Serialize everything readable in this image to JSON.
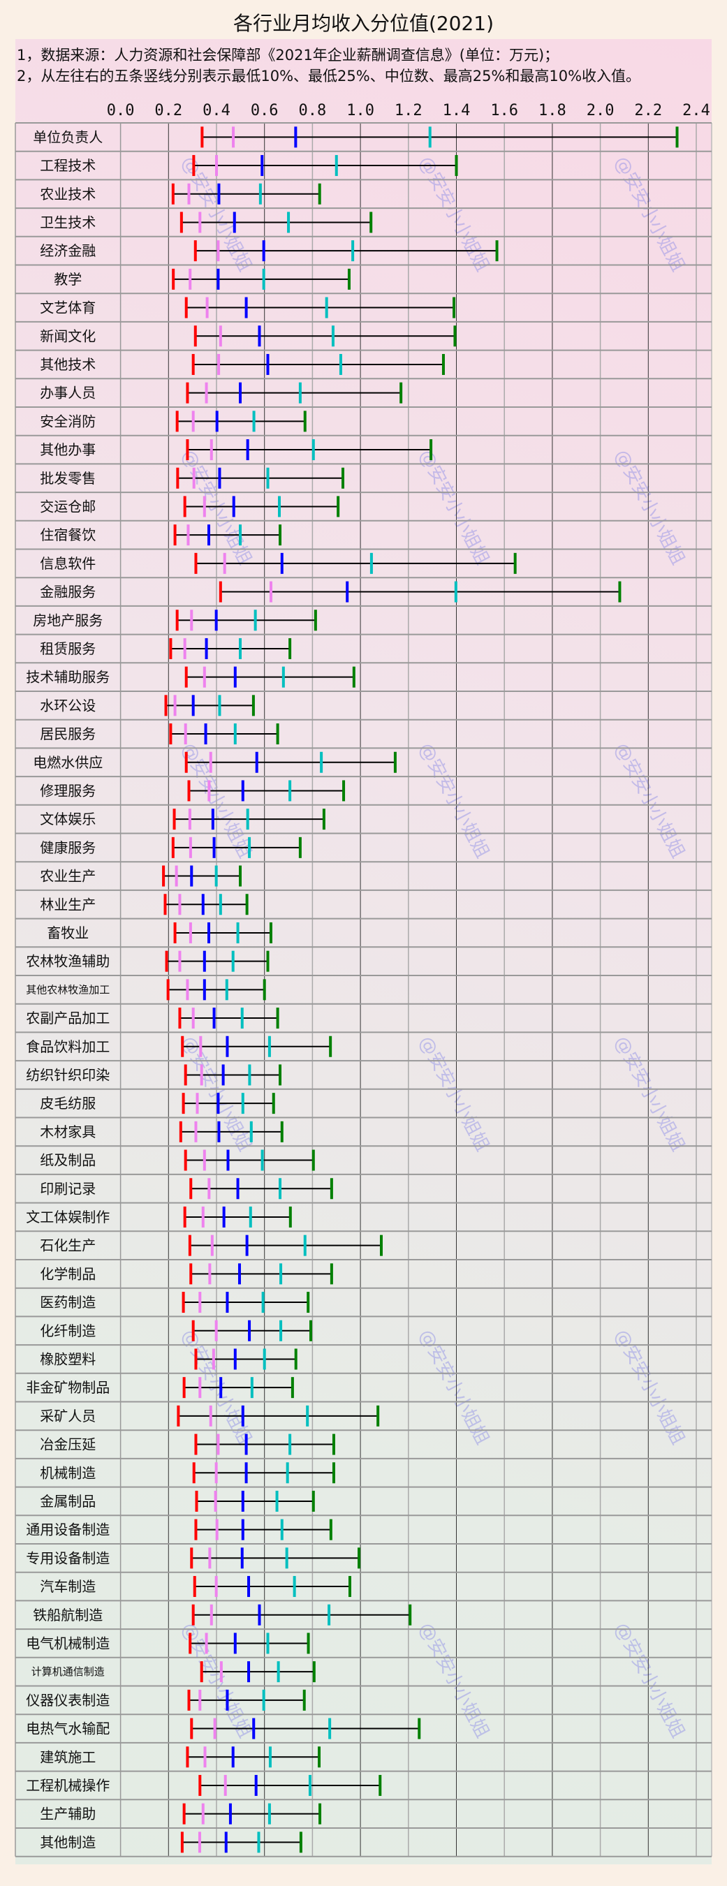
{
  "title": "各行业月均收入分位值(2021)",
  "notes": [
    "1，数据来源：人力资源和社会保障部《2021年企业薪酬调查信息》(单位：万元)；",
    "2，从左往右的五条竖线分别表示最低10%、最低25%、中位数、最高25%和最高10%收入值。"
  ],
  "watermark": "@安安小小姐姐",
  "chart_data": {
    "type": "range-marker",
    "unit": "万元",
    "xlim": [
      0.0,
      2.4
    ],
    "x_ticks": [
      "0.0",
      "0.2",
      "0.4",
      "0.6",
      "0.8",
      "1.0",
      "1.2",
      "1.4",
      "1.6",
      "1.8",
      "2.0",
      "2.2",
      "2.4"
    ],
    "grid": true,
    "series_names": [
      "最低10%",
      "最低25%",
      "中位数",
      "最高25%",
      "最高10%"
    ],
    "series_colors": [
      "#ff0000",
      "#ee82ee",
      "#0000ff",
      "#00bfbf",
      "#008000"
    ],
    "rows": [
      [
        "单位负责人",
        0.34,
        0.47,
        0.73,
        1.29,
        2.32
      ],
      [
        "工程技术",
        0.305,
        0.4,
        0.59,
        0.9,
        1.4
      ],
      [
        "农业技术",
        0.219,
        0.285,
        0.41,
        0.583,
        0.83
      ],
      [
        "卫生技术",
        0.254,
        0.331,
        0.475,
        0.7,
        1.044
      ],
      [
        "经济金融",
        0.312,
        0.407,
        0.597,
        0.968,
        1.569
      ],
      [
        "教学",
        0.22,
        0.29,
        0.407,
        0.597,
        0.953
      ],
      [
        "文艺体育",
        0.274,
        0.361,
        0.524,
        0.859,
        1.39
      ],
      [
        "新闻文化",
        0.312,
        0.417,
        0.579,
        0.886,
        1.394
      ],
      [
        "其他技术",
        0.303,
        0.409,
        0.614,
        0.918,
        1.346
      ],
      [
        "办事人员",
        0.279,
        0.358,
        0.499,
        0.749,
        1.169
      ],
      [
        "安全消防",
        0.236,
        0.303,
        0.402,
        0.556,
        0.769
      ],
      [
        "其他办事",
        0.279,
        0.379,
        0.53,
        0.804,
        1.294
      ],
      [
        "批发零售",
        0.238,
        0.306,
        0.413,
        0.614,
        0.927
      ],
      [
        "交运仓邮",
        0.268,
        0.35,
        0.472,
        0.662,
        0.907
      ],
      [
        "住宿餐饮",
        0.227,
        0.282,
        0.368,
        0.499,
        0.665
      ],
      [
        "信息软件",
        0.314,
        0.434,
        0.673,
        1.046,
        1.645
      ],
      [
        "金融服务",
        0.417,
        0.627,
        0.945,
        1.398,
        2.081
      ],
      [
        "房地产服务",
        0.236,
        0.296,
        0.399,
        0.562,
        0.813
      ],
      [
        "租赁服务",
        0.209,
        0.268,
        0.358,
        0.499,
        0.706
      ],
      [
        "技术辅助服务",
        0.274,
        0.35,
        0.478,
        0.679,
        0.973
      ],
      [
        "水环公设",
        0.189,
        0.227,
        0.303,
        0.413,
        0.554
      ],
      [
        "居民服务",
        0.209,
        0.271,
        0.355,
        0.478,
        0.655
      ],
      [
        "电燃水供应",
        0.274,
        0.376,
        0.568,
        0.837,
        1.145
      ],
      [
        "修理服务",
        0.285,
        0.369,
        0.51,
        0.706,
        0.93
      ],
      [
        "文体娱乐",
        0.224,
        0.289,
        0.385,
        0.53,
        0.848
      ],
      [
        "健康服务",
        0.219,
        0.292,
        0.39,
        0.537,
        0.749
      ],
      [
        "农业生产",
        0.179,
        0.233,
        0.296,
        0.399,
        0.499
      ],
      [
        "林业生产",
        0.186,
        0.247,
        0.344,
        0.417,
        0.527
      ],
      [
        "畜牧业",
        0.227,
        0.292,
        0.368,
        0.489,
        0.627
      ],
      [
        "农林牧渔辅助",
        0.192,
        0.247,
        0.35,
        0.469,
        0.614
      ],
      [
        "其他农林牧渔加工",
        0.198,
        0.279,
        0.35,
        0.443,
        0.6
      ],
      [
        "农副产品加工",
        0.247,
        0.303,
        0.39,
        0.507,
        0.655
      ],
      [
        "食品饮料加工",
        0.258,
        0.334,
        0.445,
        0.621,
        0.875
      ],
      [
        "纺织针织印染",
        0.271,
        0.338,
        0.428,
        0.538,
        0.665
      ],
      [
        "皮毛纺服",
        0.262,
        0.32,
        0.407,
        0.51,
        0.638
      ],
      [
        "木材家具",
        0.251,
        0.314,
        0.41,
        0.545,
        0.673
      ],
      [
        "纸及制品",
        0.271,
        0.35,
        0.448,
        0.591,
        0.804
      ],
      [
        "印刷记录",
        0.293,
        0.369,
        0.489,
        0.665,
        0.88
      ],
      [
        "文工体娱制作",
        0.268,
        0.344,
        0.431,
        0.542,
        0.708
      ],
      [
        "石化生产",
        0.289,
        0.382,
        0.527,
        0.769,
        1.087
      ],
      [
        "化学制品",
        0.293,
        0.372,
        0.496,
        0.668,
        0.88
      ],
      [
        "医药制造",
        0.262,
        0.331,
        0.445,
        0.594,
        0.782
      ],
      [
        "化纤制造",
        0.303,
        0.399,
        0.537,
        0.668,
        0.793
      ],
      [
        "橡胶塑料",
        0.314,
        0.388,
        0.478,
        0.6,
        0.731
      ],
      [
        "非金矿物制品",
        0.265,
        0.331,
        0.418,
        0.548,
        0.717
      ],
      [
        "采矿人员",
        0.241,
        0.376,
        0.51,
        0.779,
        1.073
      ],
      [
        "冶金压延",
        0.314,
        0.407,
        0.524,
        0.706,
        0.889
      ],
      [
        "机械制造",
        0.306,
        0.399,
        0.524,
        0.696,
        0.889
      ],
      [
        "金属制品",
        0.317,
        0.396,
        0.51,
        0.652,
        0.804
      ],
      [
        "通用设备制造",
        0.314,
        0.402,
        0.51,
        0.673,
        0.877
      ],
      [
        "专用设备制造",
        0.296,
        0.372,
        0.507,
        0.693,
        0.994
      ],
      [
        "汽车制造",
        0.309,
        0.399,
        0.534,
        0.725,
        0.956
      ],
      [
        "铁船航制造",
        0.303,
        0.379,
        0.579,
        0.869,
        1.207
      ],
      [
        "电气机械制造",
        0.29,
        0.358,
        0.478,
        0.614,
        0.783
      ],
      [
        "计算机通信制造",
        0.338,
        0.42,
        0.534,
        0.658,
        0.807
      ],
      [
        "仪器仪表制造",
        0.285,
        0.331,
        0.445,
        0.597,
        0.766
      ],
      [
        "电热气水输配",
        0.296,
        0.393,
        0.555,
        0.872,
        1.245
      ],
      [
        "建筑施工",
        0.279,
        0.352,
        0.469,
        0.624,
        0.828
      ],
      [
        "工程机械操作",
        0.331,
        0.437,
        0.565,
        0.79,
        1.082
      ],
      [
        "生产辅助",
        0.265,
        0.344,
        0.458,
        0.621,
        0.831
      ],
      [
        "其他制造",
        0.257,
        0.33,
        0.44,
        0.576,
        0.752
      ]
    ]
  }
}
